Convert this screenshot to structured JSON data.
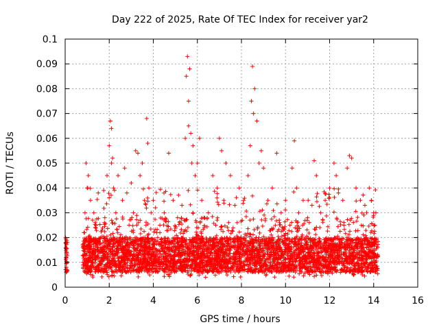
{
  "chart_data": {
    "type": "scatter",
    "title": "Day 222 of 2025, Rate Of TEC Index for receiver yar2",
    "xlabel": "GPS time / hours",
    "ylabel": "ROTI / TECUs",
    "xlim": [
      0,
      16
    ],
    "ylim": [
      0,
      0.1
    ],
    "xticks": [
      0,
      2,
      4,
      6,
      8,
      10,
      12,
      14,
      16
    ],
    "xtick_labels": [
      "0",
      "2",
      "4",
      "6",
      "8",
      "10",
      "12",
      "14",
      "16"
    ],
    "yticks": [
      0,
      0.01,
      0.02,
      0.03,
      0.04,
      0.05,
      0.06,
      0.07,
      0.08,
      0.09,
      0.1
    ],
    "ytick_labels": [
      "0",
      "0.01",
      "0.02",
      "0.03",
      "0.04",
      "0.05",
      "0.06",
      "0.07",
      "0.08",
      "0.09",
      "0.1"
    ],
    "grid": true,
    "marker": "+",
    "color": "#ff0000",
    "series": [
      {
        "name": "ROTI",
        "x": [
          0.02,
          0.03,
          0.05,
          0.06,
          0.08,
          0.1,
          0.05,
          0.07,
          0.85,
          0.9,
          0.95,
          1.0,
          1.02,
          1.05,
          1.1,
          1.15,
          1.2,
          1.3,
          1.4,
          1.5,
          1.6,
          1.7,
          1.75,
          1.8,
          1.9,
          2.0,
          2.05,
          2.1,
          2.1,
          2.15,
          2.2,
          2.3,
          2.4,
          2.5,
          2.6,
          2.7,
          2.8,
          2.9,
          3.0,
          3.1,
          3.2,
          3.3,
          3.4,
          3.5,
          3.6,
          3.7,
          3.75,
          3.8,
          3.9,
          4.0,
          4.1,
          4.2,
          4.3,
          4.5,
          4.7,
          4.9,
          5.1,
          5.3,
          5.45,
          5.5,
          5.55,
          5.6,
          5.6,
          5.65,
          5.7,
          5.75,
          5.8,
          5.9,
          6.0,
          6.1,
          6.2,
          6.3,
          6.5,
          6.7,
          6.9,
          7.0,
          7.1,
          7.2,
          7.3,
          7.5,
          7.7,
          7.9,
          8.1,
          8.3,
          8.4,
          8.45,
          8.5,
          8.55,
          8.6,
          8.7,
          8.8,
          8.9,
          9.0,
          9.2,
          9.4,
          9.6,
          9.8,
          10.0,
          10.2,
          10.3,
          10.4,
          10.5,
          10.6,
          10.8,
          11.0,
          11.2,
          11.3,
          11.4,
          11.6,
          11.8,
          12.0,
          12.2,
          12.3,
          12.4,
          12.6,
          12.8,
          12.9,
          13.0,
          13.2,
          13.4,
          13.6,
          13.8,
          13.9,
          14.0,
          14.05,
          14.1
        ],
        "y": [
          0.02,
          0.016,
          0.012,
          0.008,
          0.01,
          0.018,
          0.006,
          0.014,
          0.022,
          0.03,
          0.05,
          0.04,
          0.015,
          0.045,
          0.012,
          0.035,
          0.01,
          0.03,
          0.025,
          0.038,
          0.02,
          0.015,
          0.039,
          0.028,
          0.045,
          0.057,
          0.067,
          0.064,
          0.05,
          0.052,
          0.04,
          0.03,
          0.045,
          0.02,
          0.035,
          0.048,
          0.038,
          0.025,
          0.042,
          0.03,
          0.055,
          0.054,
          0.045,
          0.05,
          0.035,
          0.068,
          0.058,
          0.04,
          0.03,
          0.035,
          0.032,
          0.02,
          0.025,
          0.03,
          0.054,
          0.035,
          0.028,
          0.033,
          0.06,
          0.085,
          0.093,
          0.075,
          0.065,
          0.088,
          0.062,
          0.05,
          0.057,
          0.045,
          0.05,
          0.06,
          0.035,
          0.028,
          0.03,
          0.045,
          0.04,
          0.06,
          0.055,
          0.035,
          0.05,
          0.045,
          0.033,
          0.04,
          0.035,
          0.045,
          0.057,
          0.075,
          0.089,
          0.07,
          0.08,
          0.067,
          0.05,
          0.055,
          0.048,
          0.035,
          0.04,
          0.054,
          0.03,
          0.035,
          0.025,
          0.048,
          0.059,
          0.04,
          0.03,
          0.035,
          0.028,
          0.033,
          0.051,
          0.045,
          0.03,
          0.035,
          0.04,
          0.05,
          0.045,
          0.038,
          0.035,
          0.048,
          0.053,
          0.052,
          0.04,
          0.035,
          0.033,
          0.04,
          0.035,
          0.03,
          0.025,
          0.03
        ]
      }
    ]
  }
}
